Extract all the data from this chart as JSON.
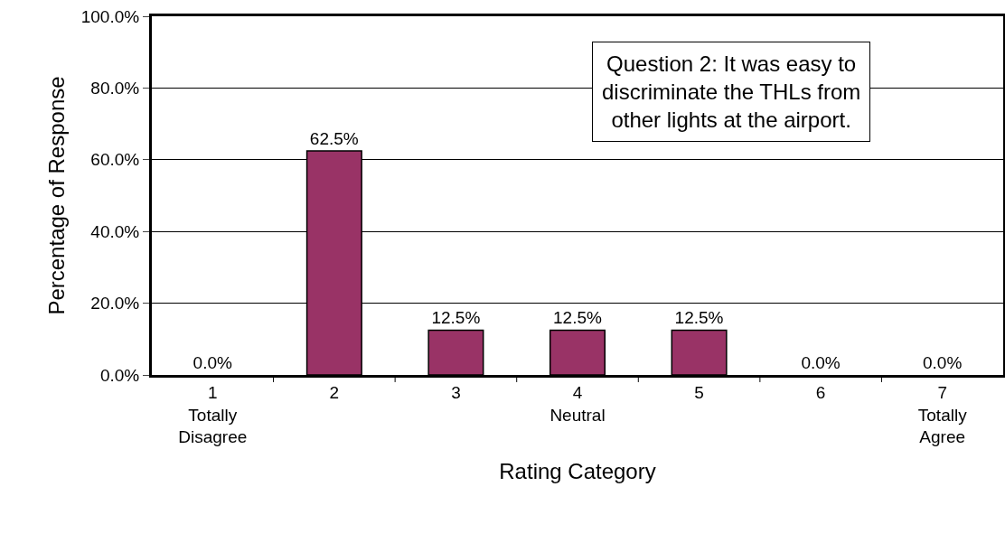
{
  "chart_data": {
    "type": "bar",
    "xlabel": "Rating Category",
    "ylabel": "Percentage of Response",
    "categories": [
      "1\nTotally\nDisagree",
      "2",
      "3",
      "4\nNeutral",
      "5",
      "6",
      "7\nTotally\nAgree"
    ],
    "values": [
      0,
      62.5,
      12.5,
      12.5,
      12.5,
      0,
      0
    ],
    "value_labels": [
      "0.0%",
      "62.5%",
      "12.5%",
      "12.5%",
      "12.5%",
      "0.0%",
      "0.0%"
    ],
    "color": "#993366",
    "ylim": [
      0,
      100
    ],
    "yticks": [
      {
        "value": 0,
        "label": "0.0%"
      },
      {
        "value": 20,
        "label": "20.0%"
      },
      {
        "value": 40,
        "label": "40.0%"
      },
      {
        "value": 60,
        "label": "60.0%"
      },
      {
        "value": 80,
        "label": "80.0%"
      },
      {
        "value": 100,
        "label": "100.0%"
      }
    ],
    "grid": "y",
    "annotations": [
      "Question 2: It was easy to\ndiscriminate the THLs from\nother lights at the airport."
    ]
  }
}
